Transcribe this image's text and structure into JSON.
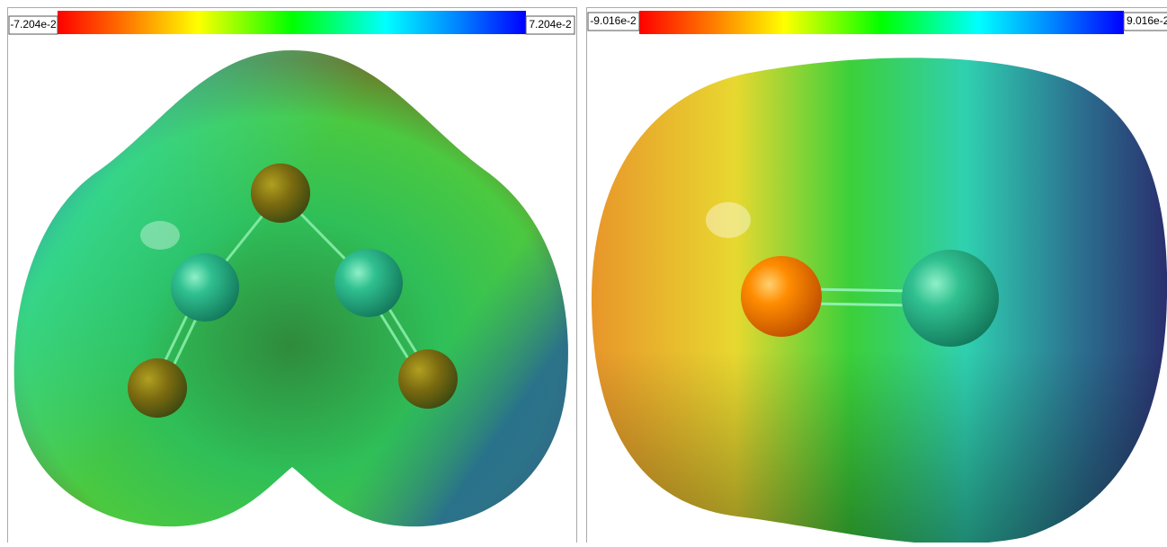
{
  "panels": [
    {
      "scale": {
        "min_label": "-7.204e-2",
        "max_label": "7.204e-2"
      }
    },
    {
      "scale": {
        "min_label": "-9.016e-2",
        "max_label": "9.016e-2"
      }
    }
  ]
}
